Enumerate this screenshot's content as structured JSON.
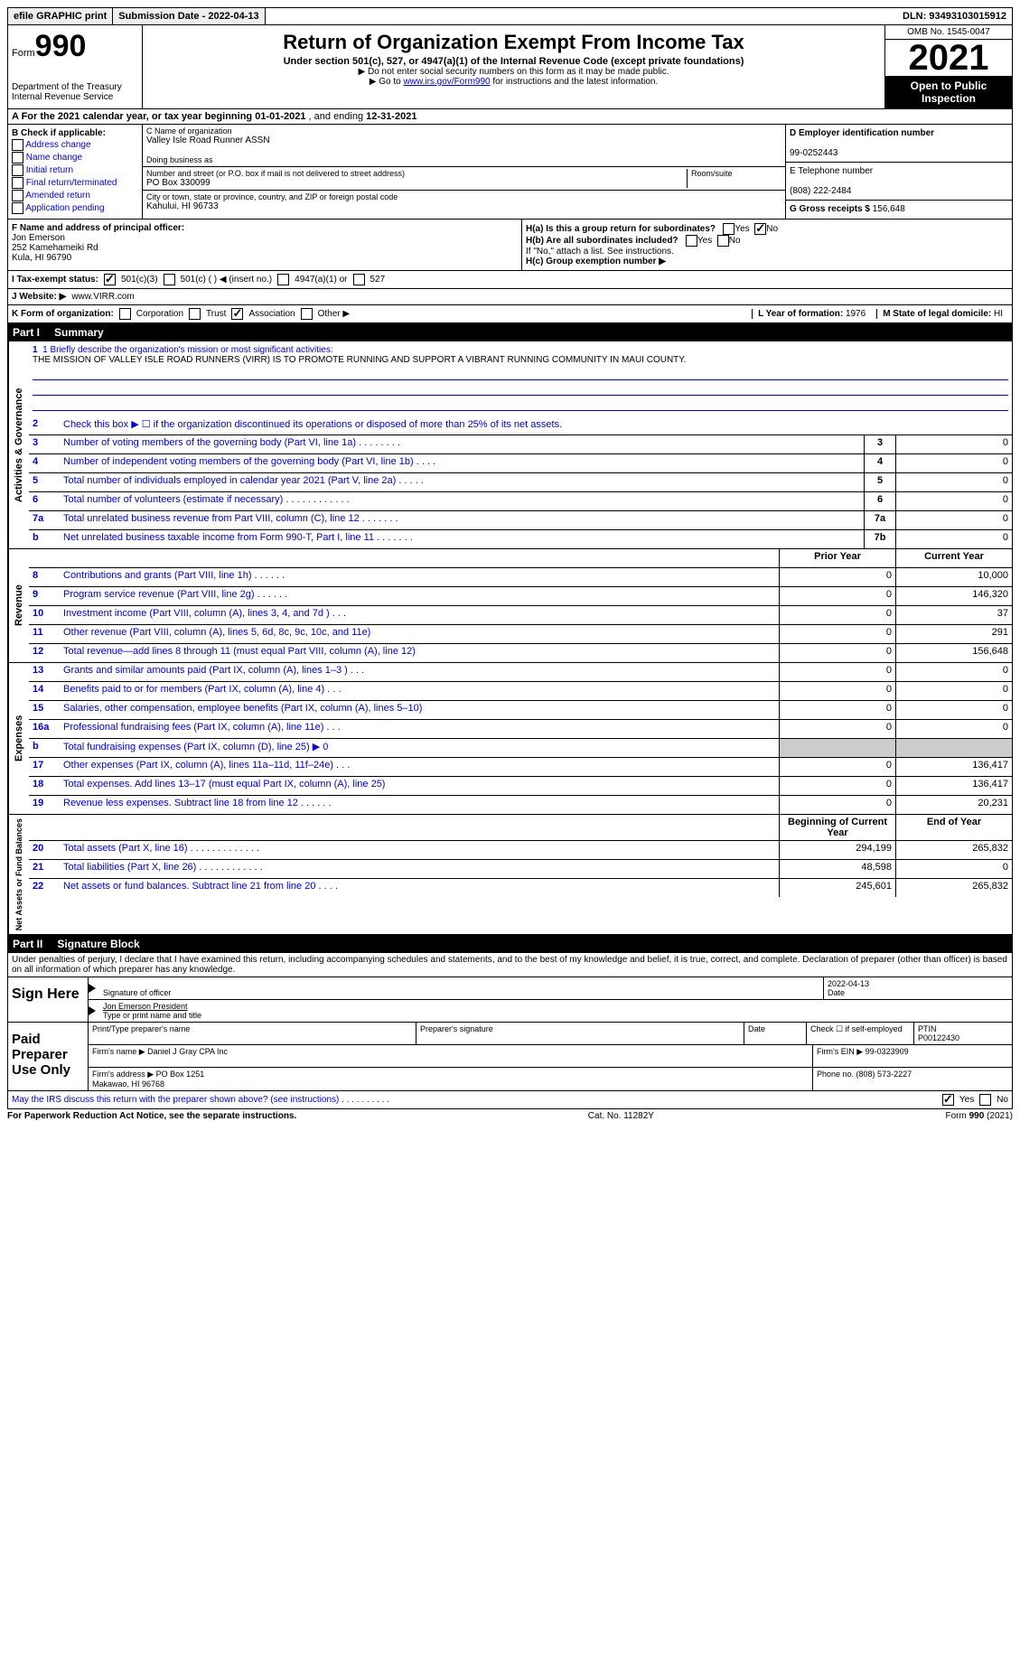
{
  "topbar": {
    "efile": "efile GRAPHIC print",
    "submission_label": "Submission Date - ",
    "submission_date": "2022-04-13",
    "dln_label": "DLN: ",
    "dln": "93493103015912"
  },
  "header": {
    "form_label": "Form",
    "form_num": "990",
    "dept": "Department of the Treasury\nInternal Revenue Service",
    "title": "Return of Organization Exempt From Income Tax",
    "sub": "Under section 501(c), 527, or 4947(a)(1) of the Internal Revenue Code (except private foundations)",
    "note1": "▶ Do not enter social security numbers on this form as it may be made public.",
    "note2_pre": "▶ Go to ",
    "note2_link": "www.irs.gov/Form990",
    "note2_post": " for instructions and the latest information.",
    "omb": "OMB No. 1545-0047",
    "year": "2021",
    "open": "Open to Public Inspection"
  },
  "row_a": {
    "text_pre": "A For the 2021 calendar year, or tax year beginning ",
    "begin": "01-01-2021",
    "mid": "  , and ending ",
    "end": "12-31-2021"
  },
  "col_b": {
    "header": "B Check if applicable:",
    "opts": [
      "Address change",
      "Name change",
      "Initial return",
      "Final return/terminated",
      "Amended return",
      "Application pending"
    ]
  },
  "col_c": {
    "name_lbl": "C Name of organization",
    "name": "Valley Isle Road Runner ASSN",
    "dba_lbl": "Doing business as",
    "dba": "",
    "street_lbl": "Number and street (or P.O. box if mail is not delivered to street address)",
    "room_lbl": "Room/suite",
    "street": "PO Box 330099",
    "city_lbl": "City or town, state or province, country, and ZIP or foreign postal code",
    "city": "Kahului, HI  96733"
  },
  "col_d": {
    "ein_lbl": "D Employer identification number",
    "ein": "99-0252443",
    "phone_lbl": "E Telephone number",
    "phone": "(808) 222-2484",
    "gross_lbl": "G Gross receipts $ ",
    "gross": "156,648"
  },
  "section_f": {
    "f_lbl": "F Name and address of principal officer:",
    "f_name": "Jon Emerson",
    "f_addr1": "252 Kamehameiki Rd",
    "f_addr2": "Kula, HI  96790",
    "ha": "H(a)  Is this a group return for subordinates?",
    "hb": "H(b)  Are all subordinates included?",
    "hb_note": "If \"No,\" attach a list. See instructions.",
    "hc": "H(c)  Group exemption number ▶",
    "yes": "Yes",
    "no": "No"
  },
  "tax_exempt": {
    "i_lbl": "I  Tax-exempt status:",
    "opt1": "501(c)(3)",
    "opt2": "501(c) (  ) ◀ (insert no.)",
    "opt3": "4947(a)(1) or",
    "opt4": "527"
  },
  "website": {
    "j_lbl": "J  Website: ▶",
    "url": "www.VIRR.com"
  },
  "row_k": {
    "k_lbl": "K Form of organization:",
    "corp": "Corporation",
    "trust": "Trust",
    "assoc": "Association",
    "other": "Other ▶",
    "l_lbl": "L Year of formation: ",
    "l_val": "1976",
    "m_lbl": "M State of legal domicile: ",
    "m_val": "HI"
  },
  "part1": {
    "label": "Part I",
    "title": "Summary"
  },
  "mission": {
    "line1_lbl": "1  Briefly describe the organization's mission or most significant activities:",
    "text": "THE MISSION OF VALLEY ISLE ROAD RUNNERS (VIRR) IS TO PROMOTE RUNNING AND SUPPORT A VIBRANT RUNNING COMMUNITY IN MAUI COUNTY."
  },
  "governance": {
    "label": "Activities & Governance",
    "line2": "Check this box ▶ ☐  if the organization discontinued its operations or disposed of more than 25% of its net assets.",
    "rows": [
      {
        "n": "3",
        "desc": "Number of voting members of the governing body (Part VI, line 1a)   .    .    .    .    .    .    .    .",
        "box": "3",
        "val": "0"
      },
      {
        "n": "4",
        "desc": "Number of independent voting members of the governing body (Part VI, line 1b)   .    .    .    .",
        "box": "4",
        "val": "0"
      },
      {
        "n": "5",
        "desc": "Total number of individuals employed in calendar year 2021 (Part V, line 2a)    .    .    .    .    .",
        "box": "5",
        "val": "0"
      },
      {
        "n": "6",
        "desc": "Total number of volunteers (estimate if necessary)     .    .    .    .    .    .    .    .    .    .    .    .",
        "box": "6",
        "val": "0"
      },
      {
        "n": "7a",
        "desc": "Total unrelated business revenue from Part VIII, column (C), line 12    .    .    .    .    .    .    .",
        "box": "7a",
        "val": "0"
      },
      {
        "n": "b",
        "desc": "Net unrelated business taxable income from Form 990-T, Part I, line 11   .    .    .    .    .    .    .",
        "box": "7b",
        "val": "0"
      }
    ]
  },
  "revenue": {
    "label": "Revenue",
    "hdr_prior": "Prior Year",
    "hdr_curr": "Current Year",
    "rows": [
      {
        "n": "8",
        "desc": "Contributions and grants (Part VIII, line 1h)    .    .    .    .    .    .",
        "prior": "0",
        "curr": "10,000"
      },
      {
        "n": "9",
        "desc": "Program service revenue (Part VIII, line 2g)    .    .    .    .    .    .",
        "prior": "0",
        "curr": "146,320"
      },
      {
        "n": "10",
        "desc": "Investment income (Part VIII, column (A), lines 3, 4, and 7d )    .    .    .",
        "prior": "0",
        "curr": "37"
      },
      {
        "n": "11",
        "desc": "Other revenue (Part VIII, column (A), lines 5, 6d, 8c, 9c, 10c, and 11e)",
        "prior": "0",
        "curr": "291"
      },
      {
        "n": "12",
        "desc": "Total revenue—add lines 8 through 11 (must equal Part VIII, column (A), line 12)",
        "prior": "0",
        "curr": "156,648"
      }
    ]
  },
  "expenses": {
    "label": "Expenses",
    "rows": [
      {
        "n": "13",
        "desc": "Grants and similar amounts paid (Part IX, column (A), lines 1–3 )   .    .    .",
        "prior": "0",
        "curr": "0"
      },
      {
        "n": "14",
        "desc": "Benefits paid to or for members (Part IX, column (A), line 4)   .    .    .",
        "prior": "0",
        "curr": "0"
      },
      {
        "n": "15",
        "desc": "Salaries, other compensation, employee benefits (Part IX, column (A), lines 5–10)",
        "prior": "0",
        "curr": "0"
      },
      {
        "n": "16a",
        "desc": "Professional fundraising fees (Part IX, column (A), line 11e)    .    .    .",
        "prior": "0",
        "curr": "0"
      },
      {
        "n": "b",
        "desc": "Total fundraising expenses (Part IX, column (D), line 25) ▶ 0",
        "prior": "",
        "curr": "",
        "shaded": true
      },
      {
        "n": "17",
        "desc": "Other expenses (Part IX, column (A), lines 11a–11d, 11f–24e)    .    .    .",
        "prior": "0",
        "curr": "136,417"
      },
      {
        "n": "18",
        "desc": "Total expenses. Add lines 13–17 (must equal Part IX, column (A), line 25)",
        "prior": "0",
        "curr": "136,417"
      },
      {
        "n": "19",
        "desc": "Revenue less expenses. Subtract line 18 from line 12    .    .    .    .    .    .",
        "prior": "0",
        "curr": "20,231"
      }
    ]
  },
  "netassets": {
    "label": "Net Assets or Fund Balances",
    "hdr_begin": "Beginning of Current Year",
    "hdr_end": "End of Year",
    "rows": [
      {
        "n": "20",
        "desc": "Total assets (Part X, line 16)   .    .    .    .    .    .    .    .    .    .    .    .    .",
        "prior": "294,199",
        "curr": "265,832"
      },
      {
        "n": "21",
        "desc": "Total liabilities (Part X, line 26)    .    .    .    .    .    .    .    .    .    .    .    .",
        "prior": "48,598",
        "curr": "0"
      },
      {
        "n": "22",
        "desc": "Net assets or fund balances. Subtract line 21 from line 20    .    .    .    .",
        "prior": "245,601",
        "curr": "265,832"
      }
    ]
  },
  "part2": {
    "label": "Part II",
    "title": "Signature Block",
    "declaration": "Under penalties of perjury, I declare that I have examined this return, including accompanying schedules and statements, and to the best of my knowledge and belief, it is true, correct, and complete. Declaration of preparer (other than officer) is based on all information of which preparer has any knowledge."
  },
  "sign": {
    "here": "Sign Here",
    "sig_lbl": "Signature of officer",
    "date_lbl": "Date",
    "date": "2022-04-13",
    "name": "Jon Emerson  President",
    "name_lbl": "Type or print name and title"
  },
  "preparer": {
    "label": "Paid Preparer Use Only",
    "print_lbl": "Print/Type preparer's name",
    "sig_lbl": "Preparer's signature",
    "date_lbl": "Date",
    "check_lbl": "Check ☐ if self-employed",
    "ptin_lbl": "PTIN",
    "ptin": "P00122430",
    "firm_name_lbl": "Firm's name    ▶",
    "firm_name": "Daniel J Gray CPA Inc",
    "firm_ein_lbl": "Firm's EIN ▶ ",
    "firm_ein": "99-0323909",
    "firm_addr_lbl": "Firm's address ▶",
    "firm_addr": "PO Box 1251\nMakawao, HI  96768",
    "phone_lbl": "Phone no. ",
    "phone": "(808) 573-2227"
  },
  "discuss": {
    "text": "May the IRS discuss this return with the preparer shown above? (see instructions)    .    .    .    .    .    .    .    .    .    .",
    "yes": "Yes",
    "no": "No"
  },
  "footer": {
    "left": "For Paperwork Reduction Act Notice, see the separate instructions.",
    "mid": "Cat. No. 11282Y",
    "right": "Form 990 (2021)"
  }
}
